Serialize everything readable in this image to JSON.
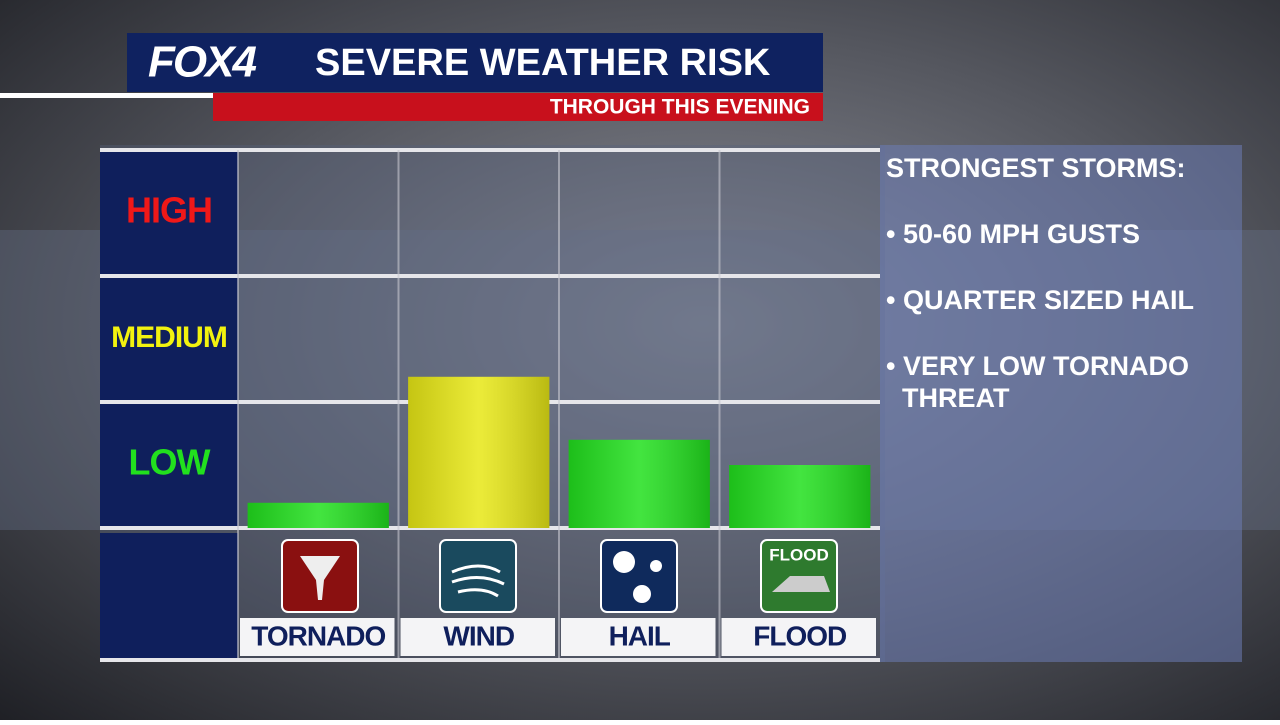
{
  "chart_data": {
    "type": "bar",
    "logo": "FOX4",
    "title": "SEVERE WEATHER RISK",
    "subtitle": "THROUGH THIS EVENING",
    "categories": [
      "TORNADO",
      "WIND",
      "HAIL",
      "FLOOD"
    ],
    "values": [
      0.2,
      1.2,
      0.7,
      0.5
    ],
    "colors": [
      "#22e01e",
      "#e8e816",
      "#22e01e",
      "#22e01e"
    ],
    "ylim": [
      0,
      3
    ],
    "yticks": [
      {
        "value": 0.5,
        "label": "LOW"
      },
      {
        "value": 1.5,
        "label": "MEDIUM"
      },
      {
        "value": 2.5,
        "label": "HIGH"
      }
    ],
    "ytick_colors": [
      "#22e01e",
      "#f2f20f",
      "#f01818"
    ],
    "flood_icon_text": "FLOOD",
    "notes_title": "STRONGEST STORMS:",
    "notes": [
      "• 50-60 MPH GUSTS",
      "• QUARTER SIZED HAIL",
      "• VERY LOW TORNADO THREAT"
    ]
  }
}
